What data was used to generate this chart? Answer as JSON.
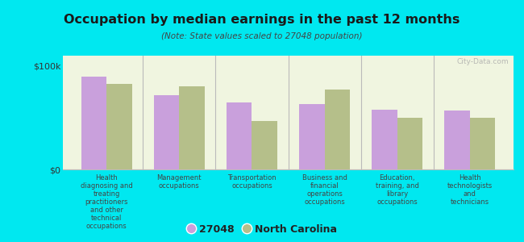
{
  "title": "Occupation by median earnings in the past 12 months",
  "subtitle": "(Note: State values scaled to 27048 population)",
  "categories": [
    "Health\ndiagnosing and\ntreating\npractitioners\nand other\ntechnical\noccupations",
    "Management\noccupations",
    "Transportation\noccupations",
    "Business and\nfinancial\noperations\noccupations",
    "Education,\ntraining, and\nlibrary\noccupations",
    "Health\ntechnologists\nand\ntechnicians"
  ],
  "values_27048": [
    90000,
    72000,
    65000,
    63000,
    58000,
    57000
  ],
  "values_nc": [
    83000,
    80000,
    47000,
    77000,
    50000,
    50000
  ],
  "color_27048": "#c9a0dc",
  "color_nc": "#b5bf8a",
  "background_plot": "#f0f5e0",
  "background_fig": "#00e8f0",
  "ylabel_tick": [
    "$0",
    "$100k"
  ],
  "ylim": [
    0,
    110000
  ],
  "yticks": [
    0,
    100000
  ],
  "legend_label_27048": "27048",
  "legend_label_nc": "North Carolina",
  "watermark": "City-Data.com"
}
